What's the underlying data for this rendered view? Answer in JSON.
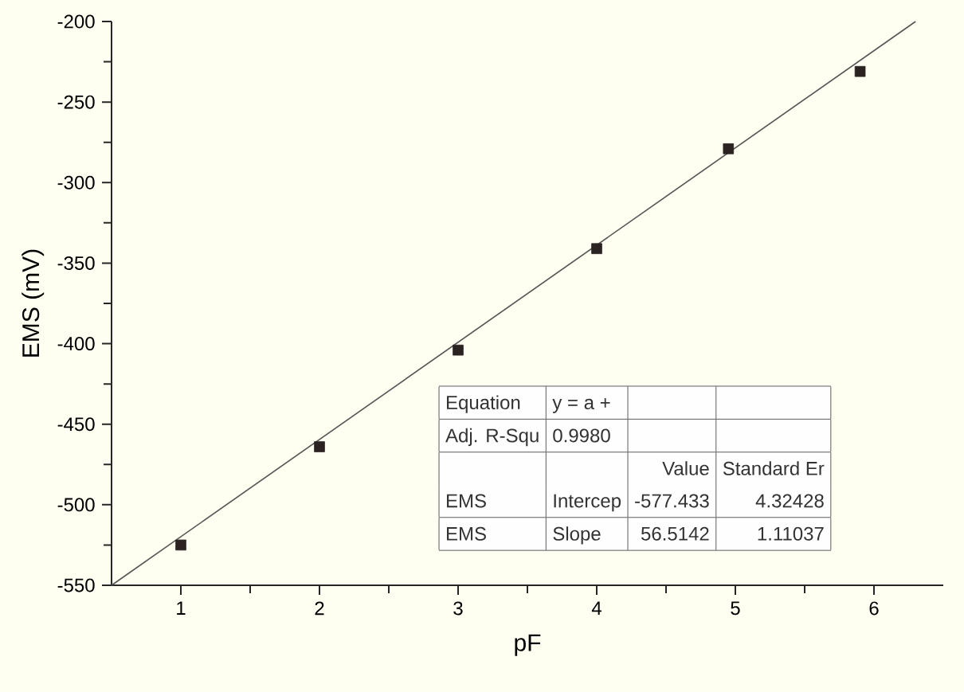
{
  "chart_data": {
    "type": "scatter",
    "xlabel": "pF",
    "ylabel": "EMS (mV)",
    "xlim": [
      0.5,
      6.5
    ],
    "xticks": [
      1,
      2,
      3,
      4,
      5,
      6
    ],
    "ylim": [
      -550,
      -200
    ],
    "yticks": [
      -550,
      -500,
      -450,
      -400,
      -350,
      -300,
      -250,
      -200
    ],
    "grid": false,
    "series": [
      {
        "marker": "square",
        "color": "#2b2222",
        "x": [
          1,
          2,
          3,
          4,
          4.95,
          5.9
        ],
        "values": [
          -525,
          -464,
          -404,
          -341,
          -279,
          -231
        ]
      },
      {
        "type": "line",
        "marker": "none",
        "line_style": "solid",
        "color": "#555555",
        "x": [
          0.5,
          6.3
        ],
        "values": [
          -550,
          -200
        ]
      }
    ],
    "annotations": [
      "Equation",
      "y = a +",
      "Adj. R-Squ",
      "0.9980",
      "Value",
      "Standard Er",
      "EMS",
      "Intercep",
      "-577.433",
      "4.32428",
      "EMS",
      "Slope",
      "56.5142",
      "1.11037"
    ]
  }
}
